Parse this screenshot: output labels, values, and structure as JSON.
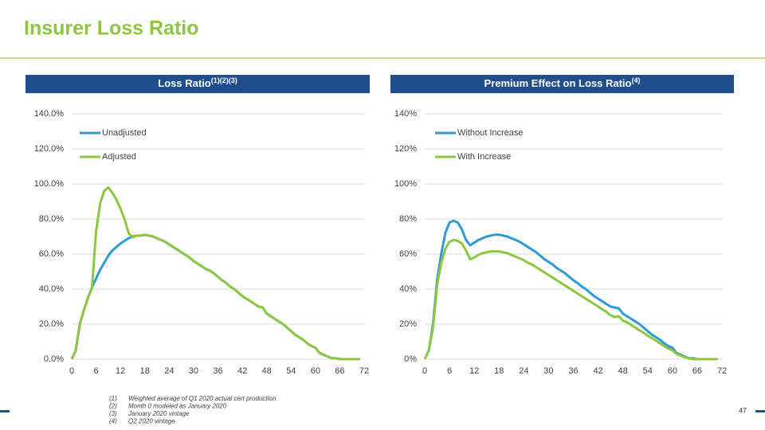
{
  "slide": {
    "title": "Insurer Loss Ratio",
    "page_number": "47",
    "footnotes": [
      {
        "marker": "(1)",
        "text": "Weighted average of Q1 2020 actual cert production"
      },
      {
        "marker": "(2)",
        "text": "Month 0 modeled as January 2020"
      },
      {
        "marker": "(3)",
        "text": "January 2020 vintage"
      },
      {
        "marker": "(4)",
        "text": "Q2 2020 vintage"
      }
    ]
  },
  "chart_data": [
    {
      "type": "line",
      "title": "Loss Ratio",
      "title_superscript": "(1)(2)(3)",
      "x": [
        0,
        1,
        2,
        3,
        4,
        5,
        6,
        7,
        8,
        9,
        10,
        11,
        12,
        13,
        14,
        15,
        16,
        17,
        18,
        19,
        20,
        21,
        22,
        23,
        24,
        25,
        26,
        27,
        28,
        29,
        30,
        31,
        32,
        33,
        34,
        35,
        36,
        37,
        38,
        39,
        40,
        41,
        42,
        43,
        44,
        45,
        46,
        47,
        48,
        49,
        50,
        51,
        52,
        53,
        54,
        55,
        56,
        57,
        58,
        59,
        60,
        61,
        62,
        63,
        64,
        65,
        66,
        67,
        68,
        69,
        70,
        71
      ],
      "xlim": [
        0,
        72
      ],
      "xticks": [
        0,
        6,
        12,
        18,
        24,
        30,
        36,
        42,
        48,
        54,
        60,
        66,
        72
      ],
      "ylim": [
        0,
        140
      ],
      "yticks": [
        {
          "value": 0,
          "label": "0.0%"
        },
        {
          "value": 20,
          "label": "20.0%"
        },
        {
          "value": 40,
          "label": "40.0%"
        },
        {
          "value": 60,
          "label": "60.0%"
        },
        {
          "value": 80,
          "label": "80.0%"
        },
        {
          "value": 100,
          "label": "100.0%"
        },
        {
          "value": 120,
          "label": "120.0%"
        },
        {
          "value": 140,
          "label": "140.0%"
        }
      ],
      "grid": true,
      "legend": "upper left",
      "series": [
        {
          "name": "Unadjusted",
          "color": "#2e9bd6",
          "values": [
            0,
            5,
            20,
            28,
            35,
            41,
            46,
            51,
            55,
            59,
            62,
            64,
            66,
            67.5,
            69,
            70,
            70.5,
            70.5,
            71,
            70.5,
            70,
            69,
            68,
            67,
            65.5,
            64,
            62.5,
            61,
            59.5,
            58,
            56,
            54.5,
            53,
            51.5,
            50.5,
            49,
            47,
            45,
            43.5,
            41.5,
            40,
            38,
            36,
            34.5,
            33,
            31.5,
            30,
            29.5,
            26,
            24.5,
            23,
            21.5,
            20,
            18,
            16,
            14,
            12.5,
            11,
            9,
            7.5,
            6.5,
            3.5,
            2.5,
            1.5,
            0.5,
            0.5,
            0,
            0,
            0,
            0,
            0,
            0
          ]
        },
        {
          "name": "Adjusted",
          "color": "#8dc63f",
          "values": [
            0,
            5,
            20,
            28,
            35,
            41,
            73,
            89,
            96,
            98,
            95,
            91,
            86,
            80,
            72,
            69.5,
            70.5,
            70.5,
            71,
            70.5,
            70,
            69,
            68,
            67,
            65.5,
            64,
            62.5,
            61,
            59.5,
            58,
            56,
            54.5,
            53,
            51.5,
            50.5,
            49,
            47,
            45,
            43.5,
            41.5,
            40,
            38,
            36,
            34.5,
            33,
            31.5,
            30,
            29.5,
            26,
            24.5,
            23,
            21.5,
            20,
            18,
            16,
            14,
            12.5,
            11,
            9,
            7.5,
            6.5,
            3.5,
            2.5,
            1.5,
            0.5,
            0.5,
            0,
            0,
            0,
            0,
            0,
            0
          ]
        }
      ]
    },
    {
      "type": "line",
      "title": "Premium Effect on Loss Ratio",
      "title_superscript": "(4)",
      "x": [
        0,
        1,
        2,
        3,
        4,
        5,
        6,
        7,
        8,
        9,
        10,
        11,
        12,
        13,
        14,
        15,
        16,
        17,
        18,
        19,
        20,
        21,
        22,
        23,
        24,
        25,
        26,
        27,
        28,
        29,
        30,
        31,
        32,
        33,
        34,
        35,
        36,
        37,
        38,
        39,
        40,
        41,
        42,
        43,
        44,
        45,
        46,
        47,
        48,
        49,
        50,
        51,
        52,
        53,
        54,
        55,
        56,
        57,
        58,
        59,
        60,
        61,
        62,
        63,
        64,
        65,
        66,
        67,
        68,
        69,
        70,
        71
      ],
      "xlim": [
        0,
        72
      ],
      "xticks": [
        0,
        6,
        12,
        18,
        24,
        30,
        36,
        42,
        48,
        54,
        60,
        66,
        72
      ],
      "ylim": [
        0,
        140
      ],
      "yticks": [
        {
          "value": 0,
          "label": "0%"
        },
        {
          "value": 20,
          "label": "20%"
        },
        {
          "value": 40,
          "label": "40%"
        },
        {
          "value": 60,
          "label": "60%"
        },
        {
          "value": 80,
          "label": "80%"
        },
        {
          "value": 100,
          "label": "100%"
        },
        {
          "value": 120,
          "label": "120%"
        },
        {
          "value": 140,
          "label": "140%"
        }
      ],
      "grid": true,
      "legend": "upper left",
      "series": [
        {
          "name": "Without Increase",
          "color": "#2e9bd6",
          "values": [
            0,
            5,
            20,
            45,
            60,
            72,
            78,
            79,
            78,
            74,
            68,
            65,
            66.5,
            68,
            69,
            70,
            70.5,
            71,
            71,
            70.5,
            70,
            69,
            68,
            67,
            65.5,
            64,
            62.5,
            61,
            59,
            57,
            55.5,
            54,
            52,
            50.5,
            49,
            47,
            45,
            43.5,
            41.5,
            40,
            38,
            36,
            34.5,
            33,
            31.5,
            30,
            29.5,
            29,
            26,
            24.5,
            23,
            21.5,
            20,
            18,
            16,
            14,
            12.5,
            11,
            9,
            7.5,
            6.5,
            3.5,
            2.5,
            1.5,
            0.5,
            0.5,
            0,
            0,
            0,
            0,
            0,
            0
          ]
        },
        {
          "name": "With Increase",
          "color": "#8dc63f",
          "values": [
            0,
            5,
            18,
            42,
            55,
            63,
            67,
            68,
            67.5,
            66,
            62,
            57,
            58,
            59.5,
            60.5,
            61,
            61.5,
            61.5,
            61.5,
            61,
            60.5,
            59.5,
            58.5,
            57.5,
            56.5,
            55,
            54,
            52.5,
            51,
            49.5,
            48,
            46.5,
            45,
            43.5,
            42,
            40.5,
            39,
            37.5,
            36,
            34.5,
            33,
            31.5,
            30,
            28.5,
            27,
            25,
            24,
            24.5,
            22,
            21,
            19.5,
            18,
            16.5,
            15,
            13.5,
            12,
            10.5,
            9,
            7.5,
            6,
            5,
            3,
            2,
            1,
            0.5,
            0,
            0,
            0,
            0,
            0,
            0,
            0
          ]
        }
      ]
    }
  ]
}
